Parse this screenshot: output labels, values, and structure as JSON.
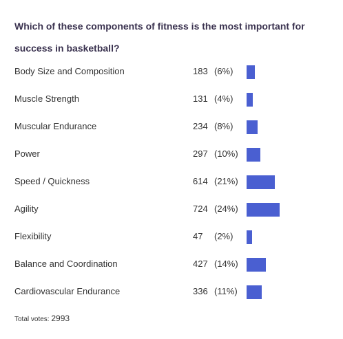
{
  "question": "Which of these components of fitness is the most important for success in basketball?",
  "total_label": "Total votes:",
  "total_votes": "2993",
  "colors": {
    "bar": "#4a5fd1",
    "title": "#3b3350"
  },
  "chart_data": {
    "type": "bar",
    "orientation": "horizontal",
    "title": "Which of these components of fitness is the most important for success in basketball?",
    "categories": [
      "Body Size and Composition",
      "Muscle Strength",
      "Muscular Endurance",
      "Power",
      "Speed / Quickness",
      "Agility",
      "Flexibility",
      "Balance and Coordination",
      "Cardiovascular Endurance"
    ],
    "values": [
      183,
      131,
      234,
      297,
      614,
      724,
      47,
      427,
      336
    ],
    "percent_labels": [
      "(6%)",
      "(4%)",
      "(8%)",
      "(10%)",
      "(21%)",
      "(24%)",
      "(2%)",
      "(14%)",
      "(11%)"
    ],
    "total": 2993,
    "xlabel": "",
    "ylabel": ""
  }
}
